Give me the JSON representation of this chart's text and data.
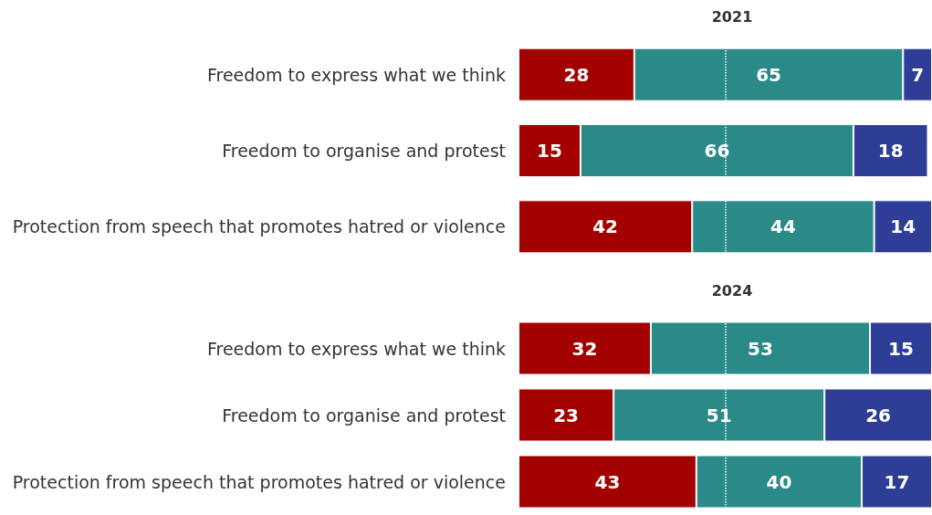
{
  "chart_data": [
    {
      "type": "bar",
      "title": "2021",
      "orientation": "horizontal",
      "stacked": true,
      "data_labels": true,
      "tick_labels": "y",
      "grid": false,
      "xlim": [
        0,
        100
      ],
      "categories": [
        "Freedom to express what we think",
        "Freedom to organise and protest",
        "Protection from speech that promotes hatred or violence"
      ],
      "series": [
        {
          "color": "#a30000",
          "values": [
            28,
            15,
            42
          ]
        },
        {
          "color": "#2a8a87",
          "values": [
            65,
            66,
            44
          ]
        },
        {
          "color": "#2e3d96",
          "values": [
            7,
            18,
            14
          ]
        }
      ],
      "ref_lines": [
        {
          "axis": "x",
          "value": 50,
          "color": "#ffffff",
          "line_style": "dotted"
        }
      ]
    },
    {
      "type": "bar",
      "title": "2024",
      "orientation": "horizontal",
      "stacked": true,
      "data_labels": true,
      "tick_labels": "y",
      "grid": false,
      "xlim": [
        0,
        100
      ],
      "categories": [
        "Freedom to express what we think",
        "Freedom to organise and protest",
        "Protection from speech that promotes hatred or violence"
      ],
      "series": [
        {
          "color": "#a30000",
          "values": [
            32,
            23,
            43
          ]
        },
        {
          "color": "#2a8a87",
          "values": [
            53,
            51,
            40
          ]
        },
        {
          "color": "#2e3d96",
          "values": [
            15,
            26,
            17
          ]
        }
      ],
      "ref_lines": [
        {
          "axis": "x",
          "value": 50,
          "color": "#ffffff",
          "line_style": "dotted"
        }
      ]
    }
  ]
}
